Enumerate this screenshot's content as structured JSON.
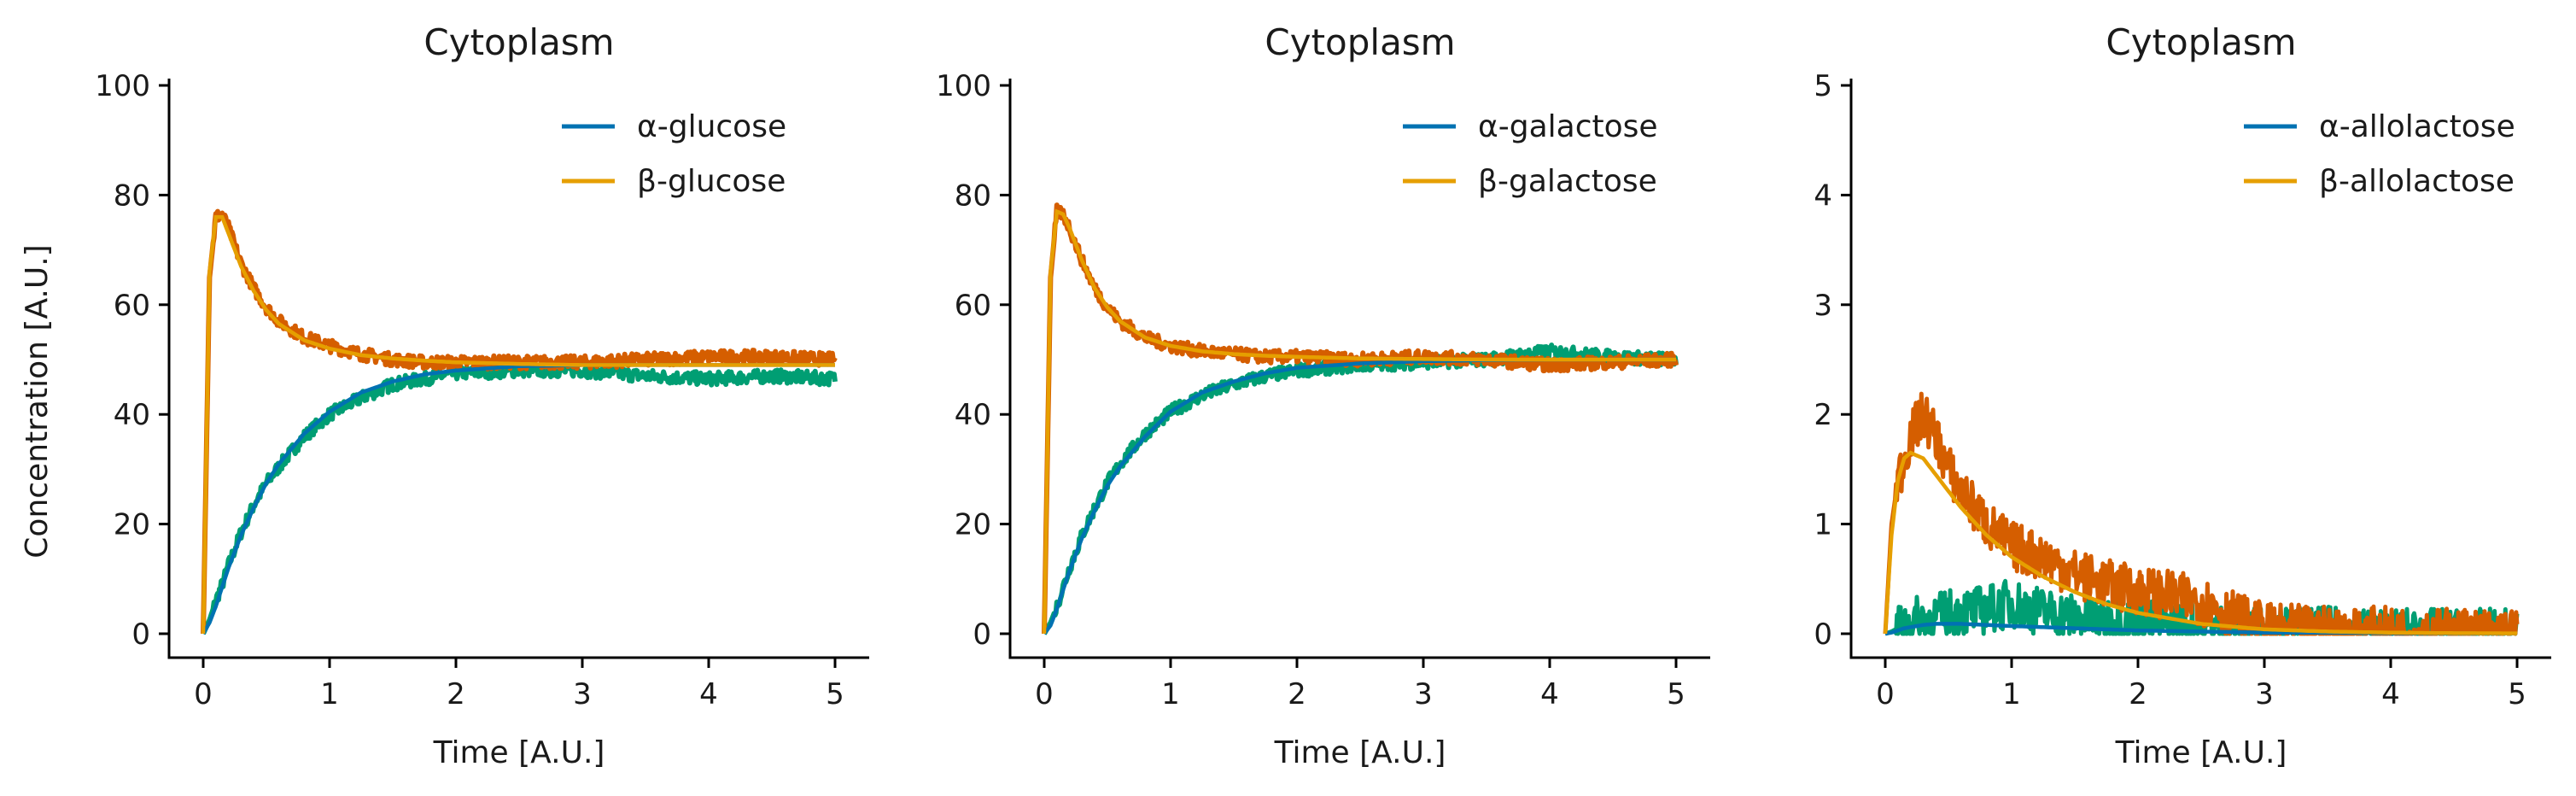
{
  "figure": {
    "ylabel": "Concentration [A.U.]"
  },
  "chart_data": [
    {
      "type": "line",
      "title": "Cytoplasm",
      "xlabel": "Time [A.U.]",
      "ylabel": "Concentration [A.U.]",
      "xlim": [
        0,
        5
      ],
      "ylim": [
        0,
        100
      ],
      "xticks": [
        "0",
        "1",
        "2",
        "3",
        "4",
        "5"
      ],
      "yticks": [
        "0",
        "20",
        "40",
        "60",
        "80",
        "100"
      ],
      "grid": false,
      "legend_position": "top-right",
      "x": [
        0,
        0.05,
        0.1,
        0.15,
        0.2,
        0.3,
        0.4,
        0.5,
        0.6,
        0.8,
        1.0,
        1.25,
        1.5,
        1.75,
        2.0,
        2.5,
        3.0,
        3.5,
        4.0,
        4.5,
        5.0
      ],
      "series": [
        {
          "name": "α-glucose",
          "color": "#0072b2",
          "kind": "line",
          "values": [
            0,
            2,
            5,
            8.5,
            12,
            18,
            23,
            27.5,
            31,
            36.5,
            40.5,
            44,
            46,
            47.3,
            48,
            48.8,
            49,
            49,
            49,
            49,
            49
          ]
        },
        {
          "name": "β-glucose",
          "color": "#e69f00",
          "kind": "line",
          "values": [
            0,
            66,
            76,
            76,
            73,
            67,
            62.5,
            59,
            56.5,
            53.5,
            52,
            50.8,
            50.2,
            49.8,
            49.5,
            49.2,
            49,
            49,
            49,
            49,
            49
          ]
        },
        {
          "kind": "noisy",
          "color": "#009e73",
          "values": [
            0,
            2.5,
            6,
            9,
            12.5,
            18.5,
            23.5,
            27.5,
            30.5,
            36,
            40,
            43,
            45.5,
            46.5,
            47.5,
            48,
            48,
            47,
            46.5,
            47,
            46.5
          ]
        },
        {
          "kind": "noisy",
          "color": "#d55e00",
          "values": [
            0,
            65,
            76,
            76.5,
            74,
            67.5,
            63,
            59.5,
            57,
            54,
            52.5,
            51,
            50,
            49.5,
            49.5,
            49.5,
            49.5,
            50,
            50.5,
            50.5,
            50
          ]
        }
      ]
    },
    {
      "type": "line",
      "title": "Cytoplasm",
      "xlabel": "Time [A.U.]",
      "ylabel": "",
      "xlim": [
        0,
        5
      ],
      "ylim": [
        0,
        100
      ],
      "xticks": [
        "0",
        "1",
        "2",
        "3",
        "4",
        "5"
      ],
      "yticks": [
        "0",
        "20",
        "40",
        "60",
        "80",
        "100"
      ],
      "grid": false,
      "legend_position": "top-right",
      "x": [
        0,
        0.05,
        0.1,
        0.15,
        0.2,
        0.3,
        0.4,
        0.5,
        0.6,
        0.8,
        1.0,
        1.25,
        1.5,
        1.75,
        2.0,
        2.5,
        3.0,
        3.5,
        4.0,
        4.5,
        5.0
      ],
      "series": [
        {
          "name": "α-galactose",
          "color": "#0072b2",
          "kind": "line",
          "values": [
            0,
            1.5,
            4.5,
            8,
            11.5,
            17.5,
            22.5,
            27,
            30.5,
            36,
            40.5,
            44,
            46,
            47.5,
            48.5,
            49.3,
            49.7,
            49.9,
            50,
            50,
            50
          ]
        },
        {
          "name": "β-galactose",
          "color": "#e69f00",
          "kind": "line",
          "values": [
            0,
            66,
            77,
            76.5,
            74,
            68,
            63,
            59.5,
            57,
            54,
            52.5,
            51.5,
            51,
            50.7,
            50.5,
            50.2,
            50.1,
            50,
            50,
            50,
            50
          ]
        },
        {
          "kind": "noisy",
          "color": "#009e73",
          "values": [
            0,
            2,
            5,
            8.5,
            12,
            18,
            23,
            27.5,
            31,
            36.5,
            40.5,
            43.5,
            45.5,
            47,
            48,
            49,
            49.5,
            50,
            51.5,
            50.5,
            50
          ]
        },
        {
          "kind": "noisy",
          "color": "#d55e00",
          "values": [
            0,
            65,
            77,
            76.5,
            74,
            68,
            63,
            59.5,
            57,
            54,
            52.5,
            51.5,
            51,
            50.5,
            50.5,
            50,
            50.5,
            50,
            49,
            49.5,
            50
          ]
        }
      ]
    },
    {
      "type": "line",
      "title": "Cytoplasm",
      "xlabel": "Time [A.U.]",
      "ylabel": "",
      "xlim": [
        0,
        5
      ],
      "ylim": [
        0,
        5
      ],
      "xticks": [
        "0",
        "1",
        "2",
        "3",
        "4",
        "5"
      ],
      "yticks": [
        "0",
        "1",
        "2",
        "3",
        "4",
        "5"
      ],
      "grid": false,
      "legend_position": "top-right",
      "x": [
        0,
        0.05,
        0.1,
        0.15,
        0.2,
        0.3,
        0.4,
        0.5,
        0.6,
        0.8,
        1.0,
        1.25,
        1.5,
        1.75,
        2.0,
        2.5,
        3.0,
        3.5,
        4.0,
        4.5,
        5.0
      ],
      "series": [
        {
          "name": "α-allolactose",
          "color": "#0072b2",
          "kind": "line",
          "values": [
            0,
            0.01,
            0.03,
            0.05,
            0.06,
            0.08,
            0.09,
            0.09,
            0.09,
            0.08,
            0.07,
            0.06,
            0.05,
            0.04,
            0.03,
            0.02,
            0.01,
            0.01,
            0.005,
            0.003,
            0.002
          ]
        },
        {
          "name": "β-allolactose",
          "color": "#e69f00",
          "kind": "line",
          "values": [
            0,
            0.9,
            1.4,
            1.6,
            1.65,
            1.6,
            1.45,
            1.3,
            1.15,
            0.9,
            0.7,
            0.52,
            0.38,
            0.27,
            0.19,
            0.09,
            0.04,
            0.02,
            0.01,
            0.005,
            0.003
          ]
        },
        {
          "kind": "noisy",
          "color": "#009e73",
          "values": [
            0,
            0.02,
            0.05,
            0.08,
            0.1,
            0.13,
            0.15,
            0.18,
            0.2,
            0.22,
            0.28,
            0.2,
            0.15,
            0.12,
            0.1,
            0.06,
            0.03,
            0.02,
            0.01,
            0.005,
            0.003
          ]
        },
        {
          "kind": "noisy",
          "color": "#d55e00",
          "values": [
            0,
            1.0,
            1.4,
            1.6,
            1.8,
            2.0,
            1.8,
            1.5,
            1.3,
            1.0,
            0.8,
            0.7,
            0.55,
            0.45,
            0.4,
            0.3,
            0.05,
            0.03,
            0.02,
            0.01,
            0.005
          ]
        }
      ]
    }
  ]
}
